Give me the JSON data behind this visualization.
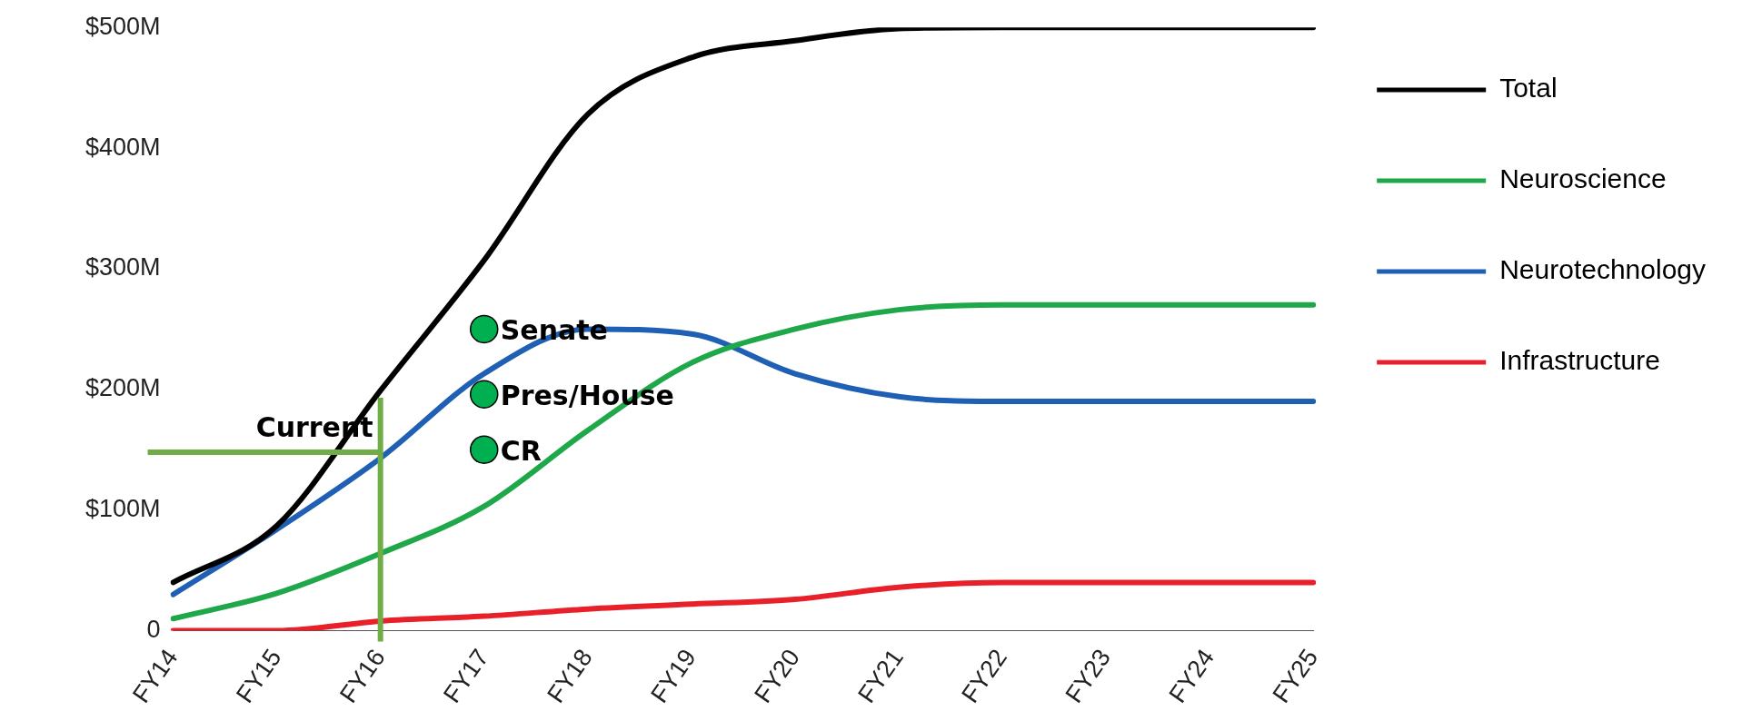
{
  "chart_data": {
    "type": "line",
    "categories": [
      "FY14",
      "FY15",
      "FY16",
      "FY17",
      "FY18",
      "FY19",
      "FY20",
      "FY21",
      "FY22",
      "FY23",
      "FY24",
      "FY25"
    ],
    "series": [
      {
        "name": "Total",
        "color": "#000000",
        "values": [
          40,
          87,
          199,
          307,
          428,
          475,
          489,
          499,
          500,
          500,
          500,
          500
        ]
      },
      {
        "name": "Neuroscience",
        "color": "#1fa84a",
        "values": [
          10,
          31,
          64,
          103,
          166,
          222,
          250,
          266,
          270,
          270,
          270,
          270
        ]
      },
      {
        "name": "Neurotechnology",
        "color": "#1f5fb4",
        "values": [
          30,
          84,
          143,
          213,
          250,
          246,
          213,
          194,
          190,
          190,
          190,
          190
        ]
      },
      {
        "name": "Infrastructure",
        "color": "#e8202a",
        "values": [
          0,
          0,
          8,
          12,
          18,
          22,
          26,
          36,
          40,
          40,
          40,
          40
        ]
      },
      {
        "name": "Senate",
        "type": "scatter",
        "marker": "circle",
        "color": "#00b050",
        "x": [
          "FY17"
        ],
        "values": [
          250
        ]
      },
      {
        "name": "Pres/House",
        "type": "scatter",
        "marker": "circle",
        "color": "#00b050",
        "x": [
          "FY17"
        ],
        "values": [
          196
        ]
      },
      {
        "name": "CR",
        "type": "scatter",
        "marker": "circle",
        "color": "#00b050",
        "x": [
          "FY17"
        ],
        "values": [
          150
        ]
      }
    ],
    "ylim": [
      0,
      500
    ],
    "yticks": [
      {
        "value": 0,
        "label": "0"
      },
      {
        "value": 100,
        "label": "$100M"
      },
      {
        "value": 200,
        "label": "$200M"
      },
      {
        "value": 300,
        "label": "$300M"
      },
      {
        "value": 400,
        "label": "$400M"
      },
      {
        "value": 500,
        "label": "$500M"
      }
    ],
    "ref_lines": [
      {
        "axis": "x",
        "value": "FY16",
        "color": "#70ad47"
      },
      {
        "axis": "y",
        "value": 148,
        "label": "Current",
        "color": "#70ad47"
      }
    ],
    "grid": false,
    "legend": "right",
    "marker": "none",
    "line_style": "solid"
  }
}
